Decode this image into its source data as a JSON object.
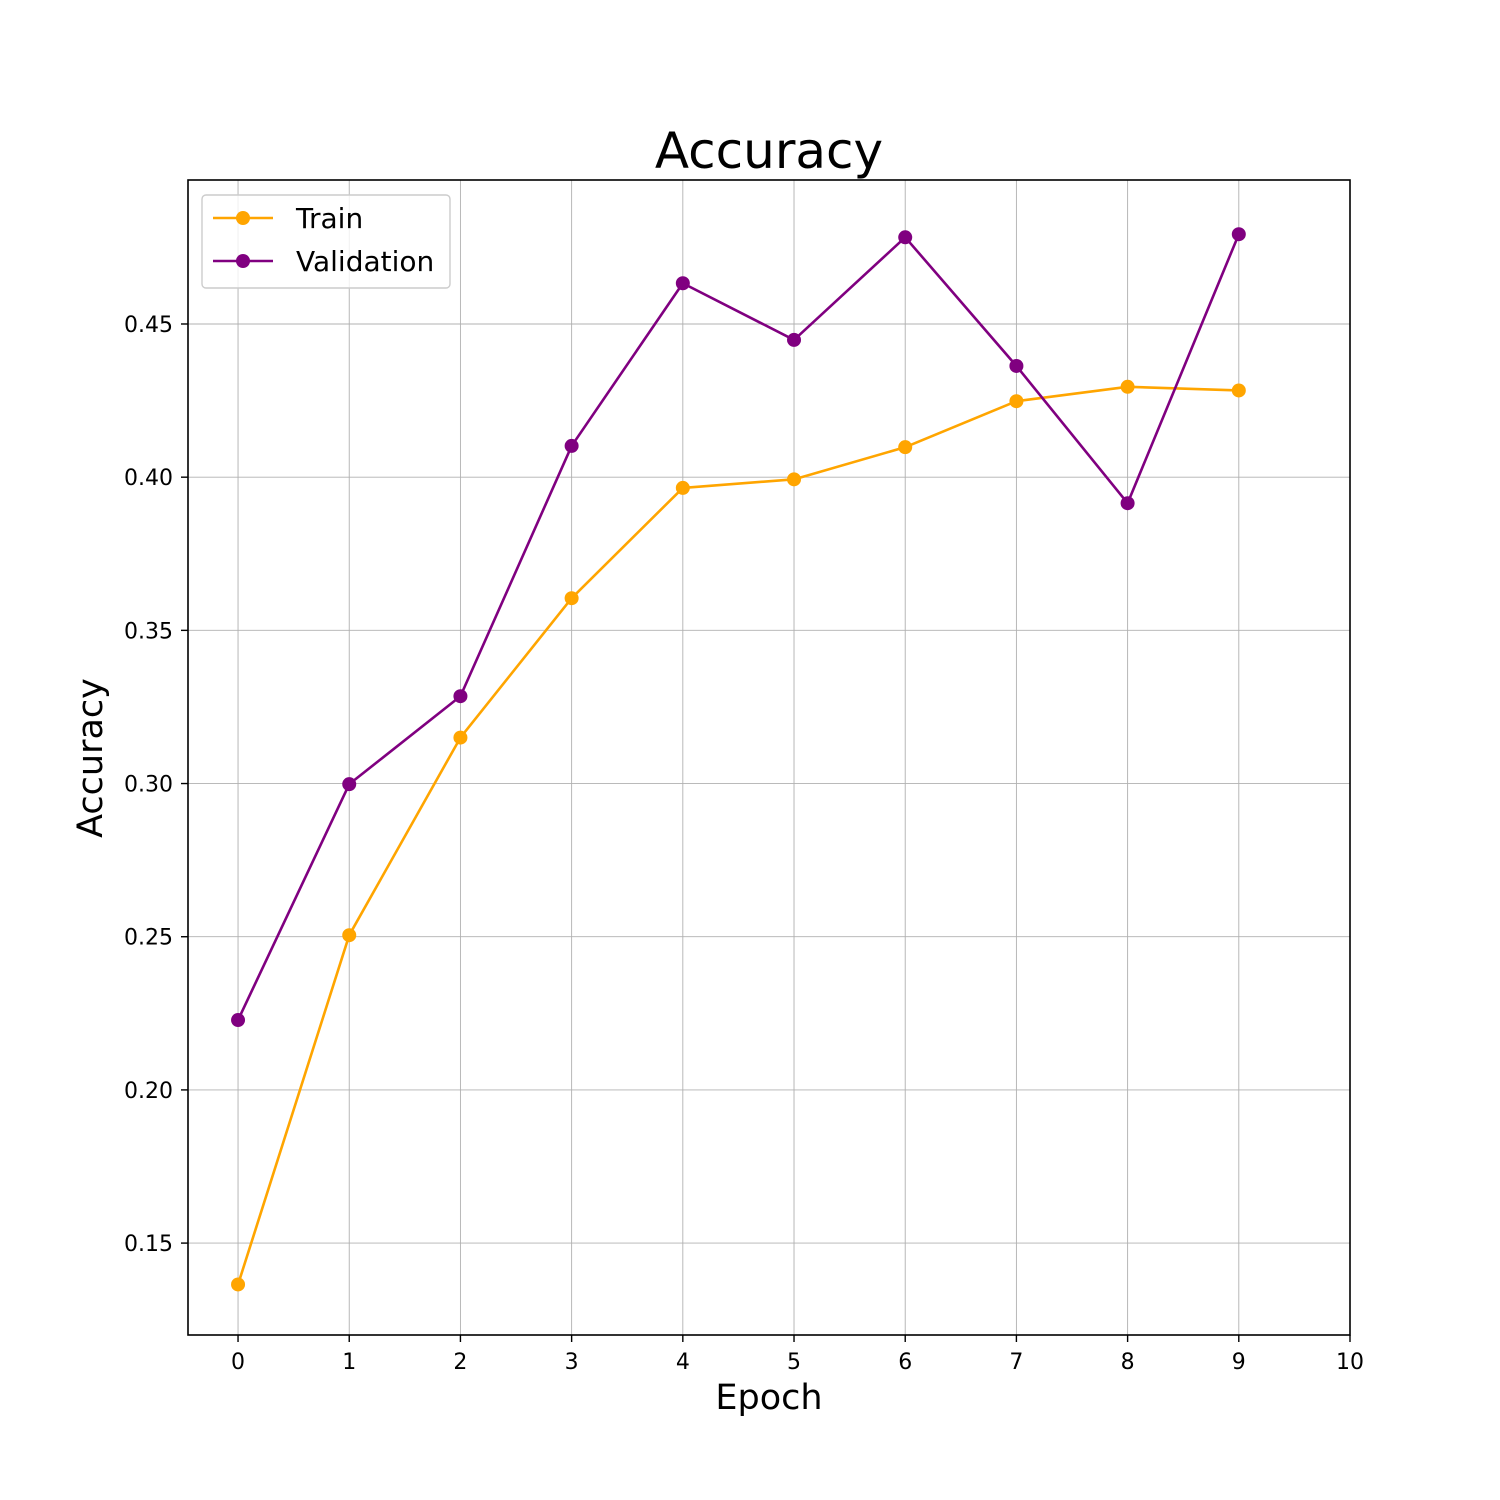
{
  "chart_data": {
    "type": "line",
    "title": "Accuracy",
    "xlabel": "Epoch",
    "ylabel": "Accuracy",
    "xlim": [
      -0.45,
      10
    ],
    "ylim": [
      0.12,
      0.497
    ],
    "xticks": [
      0,
      1,
      2,
      3,
      4,
      5,
      6,
      7,
      8,
      9,
      10
    ],
    "xtick_labels": [
      "0",
      "1",
      "2",
      "3",
      "4",
      "5",
      "6",
      "7",
      "8",
      "9",
      "10"
    ],
    "yticks": [
      0.15,
      0.2,
      0.25,
      0.3,
      0.35,
      0.4,
      0.45
    ],
    "ytick_labels": [
      "0.15",
      "0.20",
      "0.25",
      "0.30",
      "0.35",
      "0.40",
      "0.45"
    ],
    "grid": true,
    "legend_position": "upper-left",
    "x": [
      0,
      1,
      2,
      3,
      4,
      5,
      6,
      7,
      8,
      9
    ],
    "series": [
      {
        "name": "Train",
        "color": "#ffa500",
        "marker": "circle",
        "values": [
          0.1365,
          0.2505,
          0.315,
          0.3605,
          0.3965,
          0.3993,
          0.4098,
          0.4248,
          0.4295,
          0.4283
        ]
      },
      {
        "name": "Validation",
        "color": "#800080",
        "marker": "circle",
        "values": [
          0.2228,
          0.2998,
          0.3285,
          0.4102,
          0.4633,
          0.4448,
          0.4783,
          0.4363,
          0.3915,
          0.4793
        ]
      }
    ]
  }
}
